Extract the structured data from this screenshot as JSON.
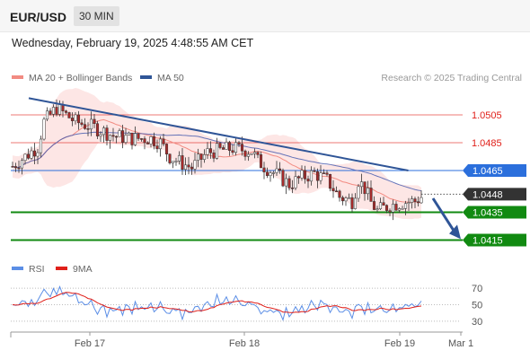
{
  "header": {
    "symbol": "EUR/USD",
    "timeframe": "30 MIN",
    "datetime": "Wednesday, February 19, 2025 4:48:55 AM CET"
  },
  "legend": {
    "items": [
      {
        "label": "MA 20 + Bollinger Bands",
        "color": "#f28b82"
      },
      {
        "label": "MA 50",
        "color": "#2f5597"
      }
    ],
    "source": "Research © 2025 Trading Central"
  },
  "rsi_legend": {
    "items": [
      {
        "label": "RSI",
        "color": "#5b8ee6"
      },
      {
        "label": "9MA",
        "color": "#e0201a"
      }
    ]
  },
  "colors": {
    "resistance": "#e0201a",
    "pivot": "#2b6fdc",
    "support": "#118a11",
    "last_price": "#333333",
    "trendline": "#2f5597",
    "candle_up": "#ffffff",
    "candle_down": "#a52a2a",
    "bollinger_fill": "#fde0de",
    "ma20": "#f28b82",
    "ma50": "#4b5fb0"
  },
  "chart_data": [
    {
      "type": "candlestick",
      "title": "",
      "ylim": [
        1.0405,
        1.0525
      ],
      "x_ticks": [
        "Feb 17",
        "Feb 18",
        "Feb 19",
        "Mar 1"
      ],
      "levels": [
        {
          "value": 1.0505,
          "label": "1.0505",
          "kind": "resistance"
        },
        {
          "value": 1.0485,
          "label": "1.0485",
          "kind": "resistance"
        },
        {
          "value": 1.0465,
          "label": "1.0465",
          "kind": "pivot"
        },
        {
          "value": 1.0435,
          "label": "1.0435",
          "kind": "support"
        },
        {
          "value": 1.0415,
          "label": "1.0415",
          "kind": "support"
        }
      ],
      "last_price": {
        "value": 1.0448,
        "label": "1.0448"
      },
      "trendline": {
        "from": {
          "bar": 0,
          "value": 1.0517
        },
        "to": {
          "bar": 131,
          "value": 1.0465
        }
      },
      "projection": {
        "from": 1.0445,
        "to": 1.0417
      }
    },
    {
      "type": "line",
      "title": "RSI",
      "ylim": [
        20,
        80
      ],
      "y_ticks": [
        70,
        50,
        30
      ]
    }
  ]
}
